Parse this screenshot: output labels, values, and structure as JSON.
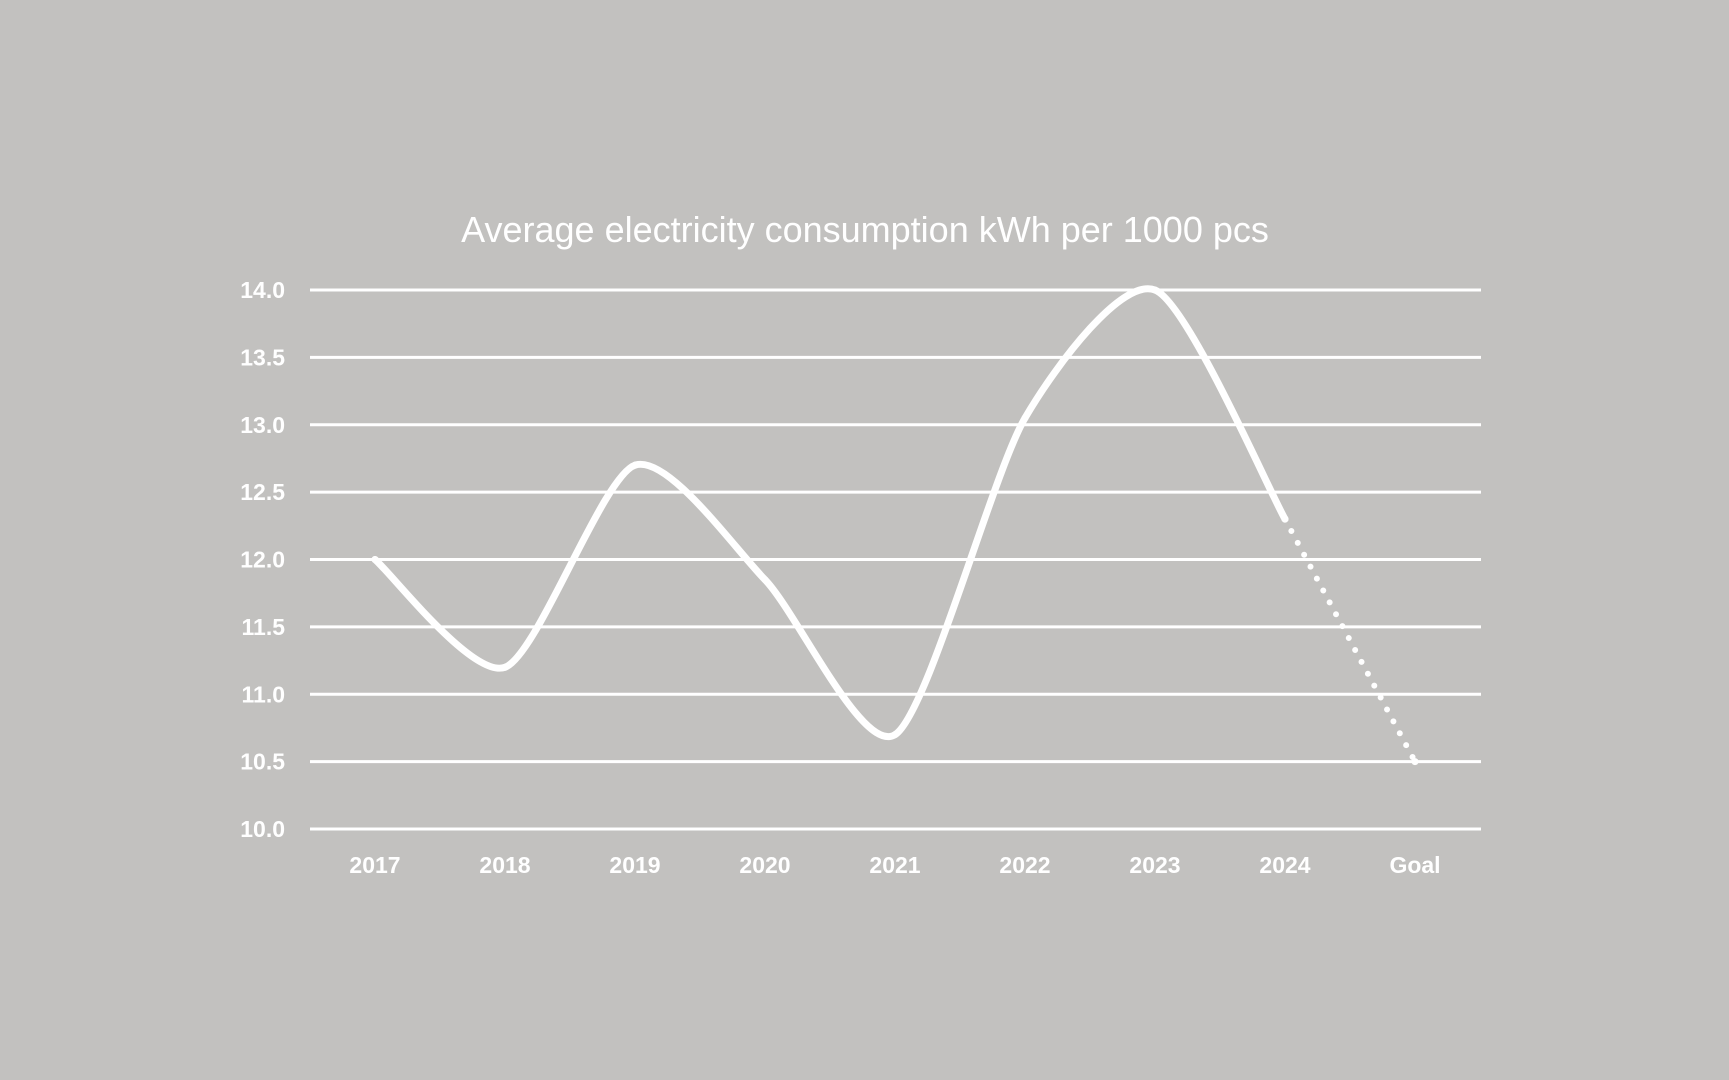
{
  "chart_data": {
    "type": "line",
    "title": "Average electricity consumption kWh per 1000 pcs",
    "xlabel": "",
    "ylabel": "",
    "categories": [
      "2017",
      "2018",
      "2019",
      "2020",
      "2021",
      "2022",
      "2023",
      "2024",
      "Goal"
    ],
    "series": [
      {
        "values": [
          12.0,
          11.2,
          12.7,
          11.85,
          10.7,
          13.05,
          14.0,
          12.3,
          null
        ],
        "line_style": "solid",
        "smooth": true
      },
      {
        "values": [
          null,
          null,
          null,
          null,
          null,
          null,
          null,
          12.3,
          10.5
        ],
        "line_style": "dotted"
      }
    ],
    "ylim": [
      10.0,
      14.0
    ],
    "yticks": [
      "10.0",
      "10.5",
      "11.0",
      "11.5",
      "12.0",
      "12.5",
      "13.0",
      "13.5",
      "14.0"
    ],
    "grid": true,
    "legend": "none",
    "colors": {
      "background": "#c2c1bf",
      "line": "#ffffff",
      "grid": "#ffffff",
      "text": "#ffffff"
    }
  }
}
